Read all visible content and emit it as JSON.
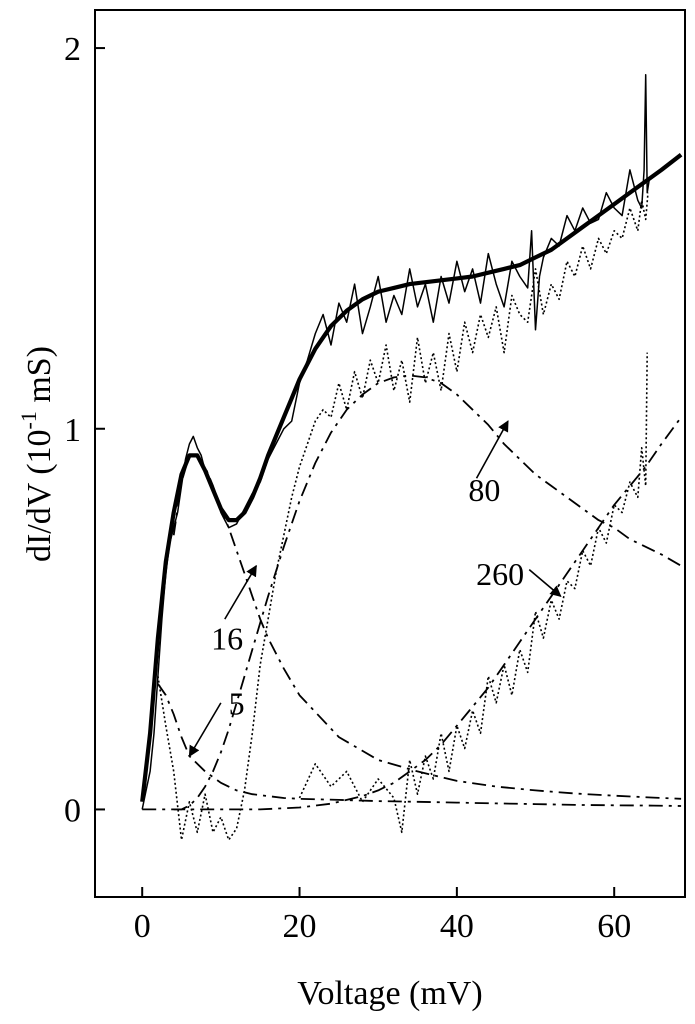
{
  "chart_data": {
    "type": "line",
    "title": "",
    "xlabel": "Voltage (mV)",
    "ylabel_parts": {
      "pre": "dI/dV (10",
      "exp": "-1",
      "post": " mS)"
    },
    "xlim": [
      -6,
      69
    ],
    "ylim": [
      -0.23,
      2.1
    ],
    "xticks": [
      0,
      20,
      40,
      60
    ],
    "yticks": [
      0,
      1,
      2
    ],
    "grid": false,
    "legend": "none",
    "series": [
      {
        "style": "thick",
        "x": [
          0,
          1,
          2,
          3,
          4,
          5,
          6,
          7,
          8,
          9,
          10,
          11,
          12,
          13,
          14,
          15,
          16,
          17,
          18,
          19,
          20,
          22,
          24,
          26,
          28,
          30,
          32,
          34,
          36,
          38,
          40,
          42,
          44,
          46,
          48,
          50,
          52,
          54,
          56,
          58,
          60,
          62,
          64,
          66,
          68.5
        ],
        "y": [
          0.02,
          0.2,
          0.45,
          0.65,
          0.78,
          0.88,
          0.93,
          0.93,
          0.89,
          0.84,
          0.79,
          0.76,
          0.76,
          0.78,
          0.82,
          0.87,
          0.93,
          0.98,
          1.03,
          1.08,
          1.13,
          1.21,
          1.27,
          1.31,
          1.34,
          1.36,
          1.37,
          1.38,
          1.385,
          1.39,
          1.395,
          1.4,
          1.41,
          1.42,
          1.43,
          1.45,
          1.47,
          1.5,
          1.53,
          1.56,
          1.59,
          1.62,
          1.65,
          1.68,
          1.72
        ]
      },
      {
        "style": "thin",
        "x": [
          0,
          0.5,
          1,
          1.5,
          2,
          2.5,
          3,
          3.5,
          4,
          4.5,
          5,
          5.5,
          6,
          6.5,
          7,
          7.5,
          8,
          9,
          10,
          11,
          12,
          13,
          14,
          15,
          16,
          17,
          18,
          19,
          20,
          21,
          22,
          23,
          24,
          25,
          26,
          27,
          28,
          29,
          30,
          31,
          32,
          33,
          34,
          35,
          36,
          37,
          38,
          39,
          40,
          41,
          42,
          43,
          44,
          45,
          46,
          47,
          48,
          49,
          49.5,
          50,
          50.5,
          51,
          52,
          53,
          54,
          55,
          56,
          57,
          58,
          59,
          60,
          61,
          62,
          63,
          63.5,
          63.8,
          64,
          64.2,
          64.5
        ],
        "y": [
          0.0,
          0.05,
          0.1,
          0.2,
          0.35,
          0.5,
          0.62,
          0.7,
          0.74,
          0.78,
          0.85,
          0.92,
          0.96,
          0.98,
          0.95,
          0.93,
          0.89,
          0.84,
          0.78,
          0.74,
          0.75,
          0.79,
          0.83,
          0.86,
          0.92,
          0.96,
          1.0,
          1.02,
          1.12,
          1.18,
          1.25,
          1.3,
          1.22,
          1.33,
          1.28,
          1.38,
          1.25,
          1.32,
          1.4,
          1.28,
          1.35,
          1.3,
          1.42,
          1.32,
          1.38,
          1.28,
          1.4,
          1.33,
          1.44,
          1.36,
          1.42,
          1.33,
          1.46,
          1.38,
          1.32,
          1.44,
          1.4,
          1.37,
          1.52,
          1.26,
          1.4,
          1.45,
          1.5,
          1.48,
          1.56,
          1.52,
          1.58,
          1.54,
          1.55,
          1.62,
          1.58,
          1.56,
          1.68,
          1.6,
          1.58,
          1.68,
          1.93,
          1.62,
          1.66
        ]
      },
      {
        "style": "dotted",
        "x": [
          2,
          3,
          4,
          5,
          6,
          7,
          8,
          9,
          10,
          11,
          12,
          13,
          14,
          15,
          16,
          17,
          18,
          19,
          20,
          21,
          22,
          23,
          24,
          25,
          26,
          27,
          28,
          29,
          30,
          31,
          32,
          33,
          34,
          35,
          36,
          37,
          38,
          39,
          40,
          41,
          42,
          43,
          44,
          45,
          46,
          47,
          48,
          49,
          50,
          51,
          52,
          53,
          54,
          55,
          56,
          57,
          58,
          59,
          60,
          61,
          62,
          63,
          63.5,
          64,
          64.3
        ],
        "y": [
          0.35,
          0.22,
          0.1,
          -0.08,
          0.02,
          -0.06,
          0.04,
          -0.06,
          -0.02,
          -0.08,
          -0.05,
          0.05,
          0.2,
          0.38,
          0.5,
          0.62,
          0.72,
          0.82,
          0.9,
          0.96,
          1.02,
          1.05,
          1.03,
          1.12,
          1.05,
          1.15,
          1.08,
          1.18,
          1.12,
          1.22,
          1.1,
          1.18,
          1.07,
          1.24,
          1.12,
          1.2,
          1.1,
          1.25,
          1.15,
          1.28,
          1.2,
          1.3,
          1.24,
          1.32,
          1.2,
          1.35,
          1.3,
          1.28,
          1.42,
          1.3,
          1.38,
          1.34,
          1.44,
          1.4,
          1.48,
          1.42,
          1.5,
          1.46,
          1.52,
          1.5,
          1.58,
          1.52,
          1.6,
          1.55,
          1.62
        ]
      },
      {
        "style": "dashdot",
        "x": [
          2,
          3,
          4,
          5,
          6,
          8,
          10,
          12,
          14,
          16,
          18,
          20,
          25,
          30,
          35,
          40,
          45,
          50,
          55,
          60,
          65,
          68.5
        ],
        "y": [
          0.33,
          0.3,
          0.25,
          0.19,
          0.14,
          0.1,
          0.07,
          0.05,
          0.04,
          0.035,
          0.03,
          0.028,
          0.025,
          0.022,
          0.02,
          0.018,
          0.016,
          0.014,
          0.012,
          0.011,
          0.01,
          0.009
        ]
      },
      {
        "style": "dashdot",
        "x": [
          4,
          5,
          6,
          7,
          8,
          9,
          10,
          11,
          12,
          13,
          14,
          15,
          16,
          18,
          20,
          25,
          30,
          35,
          40,
          45,
          50,
          55,
          60,
          65,
          68.5
        ],
        "y": [
          0.72,
          0.86,
          0.93,
          0.93,
          0.9,
          0.85,
          0.79,
          0.74,
          0.68,
          0.62,
          0.56,
          0.5,
          0.45,
          0.37,
          0.3,
          0.19,
          0.13,
          0.1,
          0.075,
          0.06,
          0.05,
          0.042,
          0.036,
          0.031,
          0.028
        ]
      },
      {
        "style": "dashdot",
        "x": [
          4,
          5,
          6,
          7,
          8,
          9,
          10,
          11,
          12,
          13,
          14,
          15,
          16,
          18,
          20,
          22,
          24,
          26,
          28,
          30,
          32,
          34,
          36,
          38,
          40,
          42,
          44,
          46,
          48,
          50,
          52,
          54,
          56,
          58,
          60,
          62,
          64,
          66,
          68.5
        ],
        "y": [
          0.0,
          0.0,
          0.01,
          0.03,
          0.06,
          0.1,
          0.15,
          0.21,
          0.28,
          0.35,
          0.42,
          0.49,
          0.56,
          0.69,
          0.81,
          0.91,
          0.99,
          1.05,
          1.09,
          1.12,
          1.135,
          1.14,
          1.135,
          1.12,
          1.09,
          1.05,
          1.01,
          0.96,
          0.92,
          0.88,
          0.85,
          0.82,
          0.79,
          0.76,
          0.74,
          0.71,
          0.69,
          0.67,
          0.64
        ]
      },
      {
        "style": "dashdot",
        "x": [
          0,
          5,
          10,
          15,
          20,
          22,
          24,
          26,
          28,
          30,
          32,
          34,
          36,
          38,
          40,
          42,
          44,
          46,
          48,
          50,
          52,
          54,
          56,
          58,
          60,
          62,
          64,
          66,
          68.5
        ],
        "y": [
          0.0,
          0.0,
          0.0,
          0.0,
          0.005,
          0.01,
          0.015,
          0.025,
          0.035,
          0.05,
          0.07,
          0.1,
          0.13,
          0.17,
          0.22,
          0.27,
          0.32,
          0.38,
          0.44,
          0.5,
          0.56,
          0.62,
          0.68,
          0.74,
          0.8,
          0.85,
          0.9,
          0.96,
          1.03
        ]
      },
      {
        "style": "dotted",
        "x": [
          20,
          22,
          24,
          26,
          28,
          30,
          32,
          33,
          34,
          35,
          36,
          37,
          38,
          39,
          40,
          41,
          42,
          43,
          44,
          45,
          46,
          47,
          48,
          49,
          50,
          51,
          52,
          53,
          54,
          55,
          56,
          57,
          58,
          59,
          60,
          61,
          62,
          63,
          63.5,
          64,
          64.2
        ],
        "y": [
          0.03,
          0.12,
          0.06,
          0.1,
          0.02,
          0.08,
          0.03,
          -0.06,
          0.13,
          0.04,
          0.14,
          0.08,
          0.2,
          0.1,
          0.22,
          0.16,
          0.26,
          0.2,
          0.35,
          0.28,
          0.38,
          0.3,
          0.42,
          0.36,
          0.52,
          0.45,
          0.55,
          0.5,
          0.6,
          0.58,
          0.68,
          0.64,
          0.74,
          0.7,
          0.8,
          0.78,
          0.86,
          0.82,
          0.95,
          0.85,
          1.2
        ]
      }
    ],
    "annotations": [
      {
        "text": "80",
        "text_x": 43.5,
        "text_y": 0.81,
        "arrow_from": [
          42.5,
          0.87
        ],
        "arrow_to": [
          46.5,
          1.02
        ]
      },
      {
        "text": "260",
        "text_x": 45.5,
        "text_y": 0.59,
        "arrow_from": [
          49.2,
          0.63
        ],
        "arrow_to": [
          53.2,
          0.56
        ]
      },
      {
        "text": "16",
        "text_x": 10.8,
        "text_y": 0.42,
        "arrow_from": [
          10.5,
          0.5
        ],
        "arrow_to": [
          14.5,
          0.64
        ]
      },
      {
        "text": "5",
        "text_x": 12.0,
        "text_y": 0.25,
        "arrow_from": [
          10.0,
          0.28
        ],
        "arrow_to": [
          6.0,
          0.14
        ]
      }
    ]
  }
}
